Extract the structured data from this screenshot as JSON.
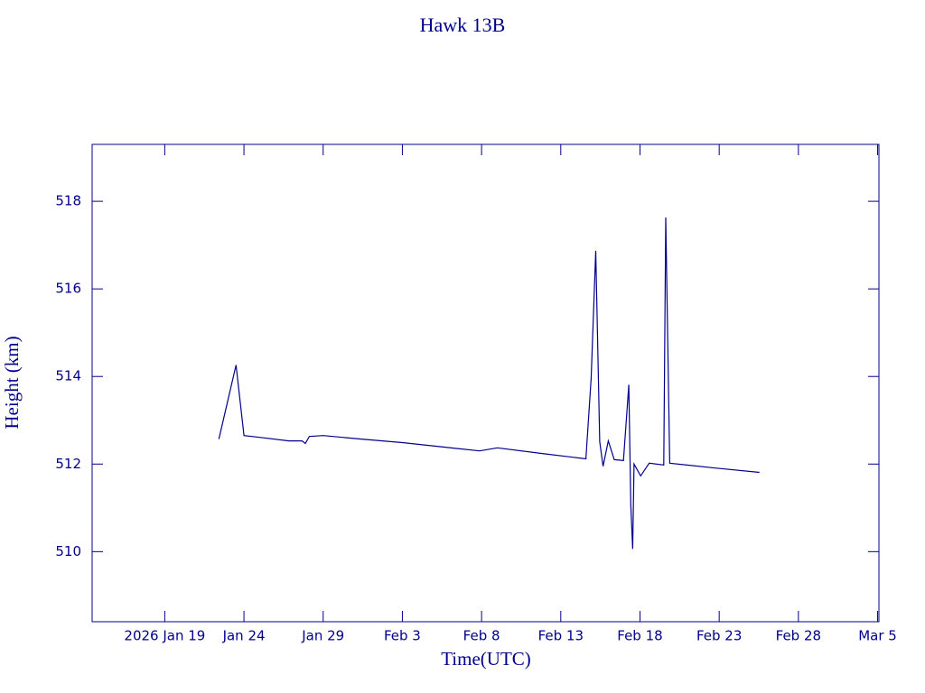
{
  "chart_data": {
    "type": "line",
    "title": "Hawk 13B",
    "x_label": "Time(UTC)",
    "y_label": "Height (km)",
    "color": "#00008b",
    "xlim": [
      "2026-01-14T10:00",
      "2026-03-05T02:00"
    ],
    "xticks": [
      {
        "value": "2026-01-19T00:00",
        "label": "2026 Jan 19"
      },
      {
        "value": "2026-01-24T00:00",
        "label": "Jan 24"
      },
      {
        "value": "2026-01-29T00:00",
        "label": "Jan 29"
      },
      {
        "value": "2026-02-03T00:00",
        "label": "Feb  3"
      },
      {
        "value": "2026-02-08T00:00",
        "label": "Feb  8"
      },
      {
        "value": "2026-02-13T00:00",
        "label": "Feb 13"
      },
      {
        "value": "2026-02-18T00:00",
        "label": "Feb 18"
      },
      {
        "value": "2026-02-23T00:00",
        "label": "Feb 23"
      },
      {
        "value": "2026-02-28T00:00",
        "label": "Feb 28"
      },
      {
        "value": "2026-03-05T00:00",
        "label": "Mar  5"
      }
    ],
    "ylim": [
      508.4,
      519.3
    ],
    "yticks": [
      510,
      512,
      514,
      516,
      518
    ],
    "x": [
      "2026-01-22T10:00",
      "2026-01-23T12:00",
      "2026-01-24T00:00",
      "2026-01-25T00:00",
      "2026-01-26T20:00",
      "2026-01-27T16:00",
      "2026-01-27T21:00",
      "2026-01-28T03:00",
      "2026-01-29T00:00",
      "2026-01-31T10:00",
      "2026-02-03T00:00",
      "2026-02-05T14:00",
      "2026-02-07T21:00",
      "2026-02-09T00:00",
      "2026-02-11T20:00",
      "2026-02-14T03:00",
      "2026-02-14T14:00",
      "2026-02-14T22:00",
      "2026-02-15T05:00",
      "2026-02-15T11:00",
      "2026-02-15T16:00",
      "2026-02-16T00:00",
      "2026-02-16T09:00",
      "2026-02-16T23:00",
      "2026-02-17T07:00",
      "2026-02-17T10:00",
      "2026-02-17T13:00",
      "2026-02-17T15:00",
      "2026-02-18T01:00",
      "2026-02-18T14:00",
      "2026-02-19T12:00",
      "2026-02-19T15:00",
      "2026-02-19T21:00",
      "2026-02-22T18:00",
      "2026-02-25T13:00"
    ],
    "values": [
      512.57,
      514.26,
      512.65,
      512.61,
      512.53,
      512.53,
      512.47,
      512.63,
      512.65,
      512.57,
      512.49,
      512.39,
      512.3,
      512.37,
      512.24,
      512.14,
      512.12,
      513.95,
      516.87,
      512.51,
      511.95,
      512.53,
      512.1,
      512.08,
      513.81,
      511.07,
      510.06,
      512.0,
      511.73,
      512.02,
      511.98,
      517.63,
      512.02,
      511.91,
      511.81
    ]
  }
}
